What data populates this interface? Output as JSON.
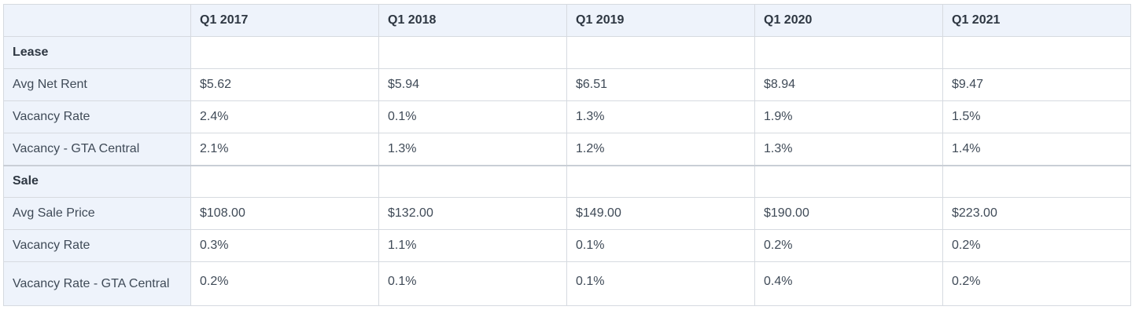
{
  "table": {
    "columns": [
      "",
      "Q1 2017",
      "Q1 2018",
      "Q1 2019",
      "Q1 2020",
      "Q1 2021"
    ],
    "groups": [
      {
        "label": "Lease",
        "rows": [
          {
            "label": "Avg Net Rent",
            "values": [
              "$5.62",
              "$5.94",
              "$6.51",
              "$8.94",
              "$9.47"
            ]
          },
          {
            "label": "Vacancy Rate",
            "values": [
              "2.4%",
              "0.1%",
              "1.3%",
              "1.9%",
              "1.5%"
            ]
          },
          {
            "label": "Vacancy - GTA Central",
            "values": [
              "2.1%",
              "1.3%",
              "1.2%",
              "1.3%",
              "1.4%"
            ]
          }
        ]
      },
      {
        "label": "Sale",
        "rows": [
          {
            "label": "Avg Sale Price",
            "values": [
              "$108.00",
              "$132.00",
              "$149.00",
              "$190.00",
              "$223.00"
            ]
          },
          {
            "label": "Vacancy Rate",
            "values": [
              "0.3%",
              "1.1%",
              "0.1%",
              "0.2%",
              "0.2%"
            ]
          },
          {
            "label": "Vacancy Rate - GTA Central",
            "values": [
              "0.2%",
              "0.1%",
              "0.1%",
              "0.4%",
              "0.2%"
            ]
          }
        ]
      }
    ]
  }
}
